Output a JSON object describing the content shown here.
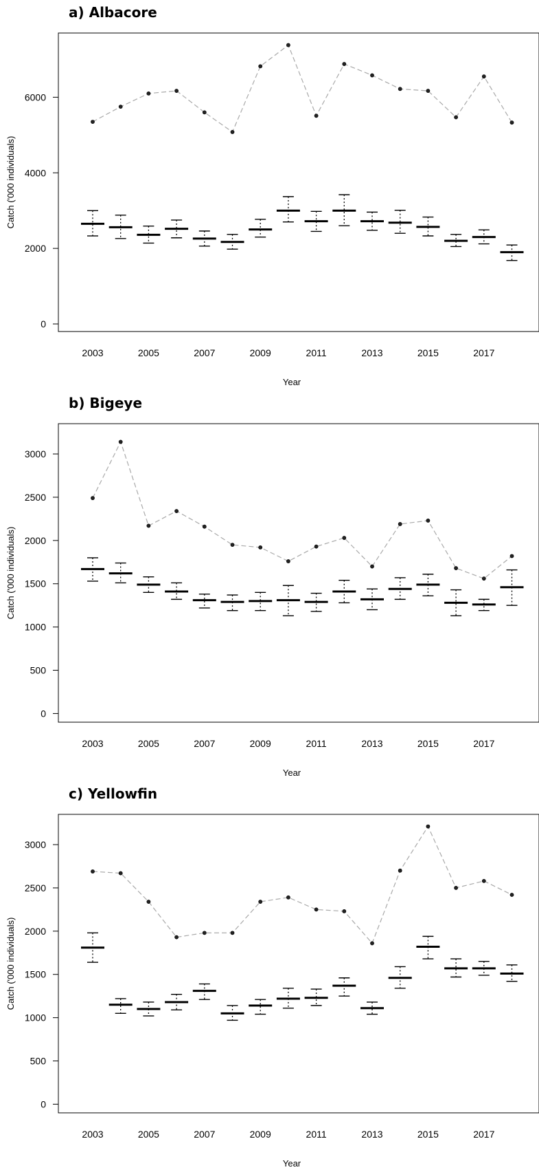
{
  "chart_data": [
    {
      "type": "line",
      "panel_title": "a) Albacore",
      "xlabel": "Year",
      "ylabel": "Catch ('000 individuals)",
      "x": [
        2003,
        2004,
        2005,
        2006,
        2007,
        2008,
        2009,
        2010,
        2011,
        2012,
        2013,
        2014,
        2015,
        2016,
        2017,
        2018
      ],
      "x_tick_labels": [
        "2003",
        "2005",
        "2007",
        "2009",
        "2011",
        "2013",
        "2015",
        "2017"
      ],
      "y_ticks": [
        0,
        2000,
        4000,
        6000
      ],
      "ylim": [
        -200,
        7700
      ],
      "series": [
        {
          "style": "dashed-grey-with-points",
          "values": [
            5350,
            5750,
            6100,
            6170,
            5600,
            5080,
            6820,
            7380,
            5510,
            6880,
            6580,
            6220,
            6170,
            5470,
            6550,
            5330
          ]
        },
        {
          "style": "median-with-error-bars",
          "median": [
            2650,
            2560,
            2360,
            2520,
            2260,
            2170,
            2500,
            3000,
            2720,
            3000,
            2720,
            2680,
            2570,
            2200,
            2300,
            1900
          ],
          "lower": [
            2330,
            2260,
            2140,
            2280,
            2060,
            1980,
            2300,
            2700,
            2450,
            2600,
            2480,
            2400,
            2330,
            2050,
            2120,
            1680
          ],
          "upper": [
            3000,
            2880,
            2590,
            2750,
            2460,
            2370,
            2770,
            3370,
            2980,
            3420,
            2960,
            3010,
            2830,
            2370,
            2490,
            2090
          ]
        }
      ]
    },
    {
      "type": "line",
      "panel_title": "b) Bigeye",
      "xlabel": "Year",
      "ylabel": "Catch ('000 individuals)",
      "x": [
        2003,
        2004,
        2005,
        2006,
        2007,
        2008,
        2009,
        2010,
        2011,
        2012,
        2013,
        2014,
        2015,
        2016,
        2017,
        2018
      ],
      "x_tick_labels": [
        "2003",
        "2005",
        "2007",
        "2009",
        "2011",
        "2013",
        "2015",
        "2017"
      ],
      "y_ticks": [
        0,
        500,
        1000,
        1500,
        2000,
        2500,
        3000
      ],
      "ylim": [
        -100,
        3350
      ],
      "series": [
        {
          "style": "dashed-grey-with-points",
          "values": [
            2490,
            3140,
            2170,
            2340,
            2160,
            1950,
            1920,
            1760,
            1930,
            2030,
            1700,
            2190,
            2230,
            1680,
            1560,
            1820
          ]
        },
        {
          "style": "median-with-error-bars",
          "median": [
            1670,
            1620,
            1490,
            1410,
            1310,
            1290,
            1300,
            1310,
            1290,
            1410,
            1320,
            1440,
            1490,
            1280,
            1260,
            1460
          ],
          "lower": [
            1530,
            1510,
            1400,
            1320,
            1220,
            1190,
            1190,
            1130,
            1180,
            1280,
            1200,
            1320,
            1360,
            1130,
            1190,
            1250
          ],
          "upper": [
            1800,
            1740,
            1580,
            1510,
            1380,
            1370,
            1400,
            1480,
            1390,
            1540,
            1440,
            1570,
            1610,
            1430,
            1320,
            1660
          ]
        }
      ]
    },
    {
      "type": "line",
      "panel_title": "c) Yellowfin",
      "xlabel": "Year",
      "ylabel": "Catch ('000 individuals)",
      "x": [
        2003,
        2004,
        2005,
        2006,
        2007,
        2008,
        2009,
        2010,
        2011,
        2012,
        2013,
        2014,
        2015,
        2016,
        2017,
        2018
      ],
      "x_tick_labels": [
        "2003",
        "2005",
        "2007",
        "2009",
        "2011",
        "2013",
        "2015",
        "2017"
      ],
      "y_ticks": [
        0,
        500,
        1000,
        1500,
        2000,
        2500,
        3000
      ],
      "ylim": [
        -100,
        3350
      ],
      "series": [
        {
          "style": "dashed-grey-with-points",
          "values": [
            2690,
            2670,
            2340,
            1930,
            1980,
            1980,
            2340,
            2390,
            2250,
            2230,
            1860,
            2700,
            3210,
            2500,
            2580,
            2420
          ]
        },
        {
          "style": "median-with-error-bars",
          "median": [
            1810,
            1150,
            1100,
            1180,
            1310,
            1050,
            1140,
            1220,
            1230,
            1370,
            1110,
            1460,
            1820,
            1570,
            1570,
            1510
          ],
          "lower": [
            1640,
            1050,
            1020,
            1090,
            1210,
            970,
            1040,
            1110,
            1140,
            1250,
            1040,
            1340,
            1680,
            1470,
            1490,
            1420
          ],
          "upper": [
            1980,
            1220,
            1180,
            1270,
            1390,
            1140,
            1210,
            1340,
            1330,
            1460,
            1180,
            1590,
            1940,
            1680,
            1650,
            1610
          ]
        }
      ]
    }
  ]
}
